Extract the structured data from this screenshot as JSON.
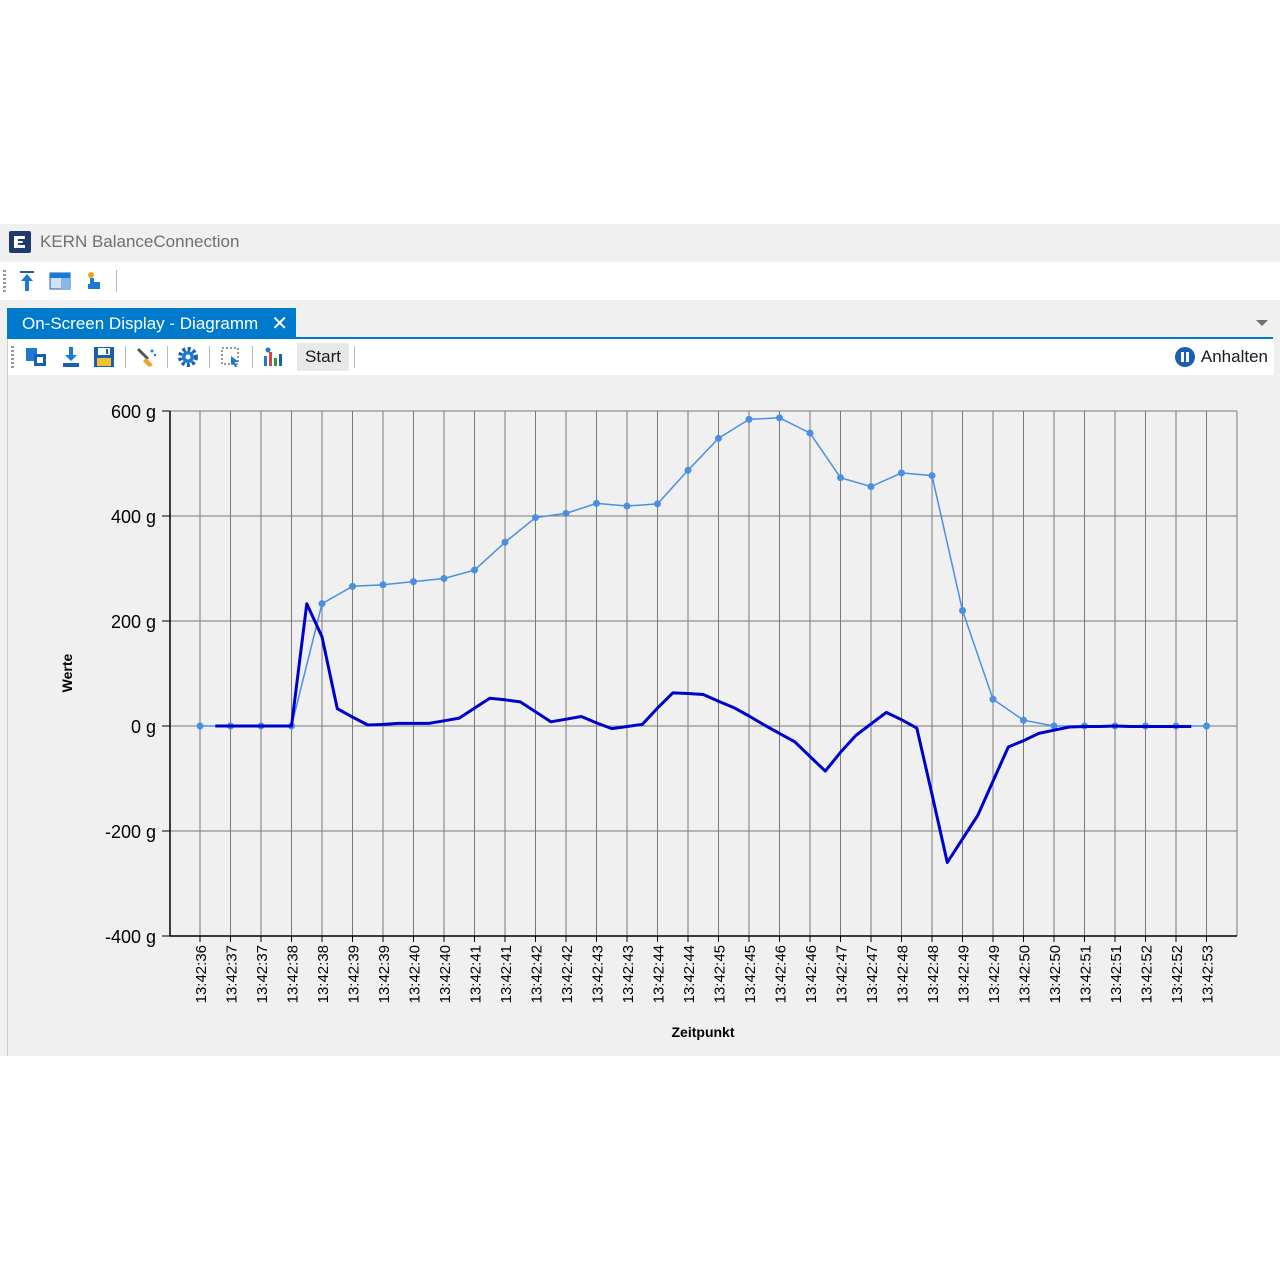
{
  "app": {
    "title": "KERN BalanceConnection",
    "logo": "kern-logo-icon"
  },
  "main_toolbar": {
    "buttons": [
      {
        "name": "upload-arrow-icon"
      },
      {
        "name": "window-layout-icon"
      },
      {
        "name": "touch-pointer-icon"
      }
    ]
  },
  "tab": {
    "label": "On-Screen Display - Diagramm",
    "close_label": "✕"
  },
  "doc_toolbar": {
    "buttons": [
      {
        "name": "connect-devices-icon"
      },
      {
        "name": "download-icon"
      },
      {
        "name": "save-icon"
      },
      {
        "name": "clear-brush-icon"
      },
      {
        "name": "settings-gear-icon"
      },
      {
        "name": "select-area-icon"
      },
      {
        "name": "chart-config-icon"
      }
    ],
    "start_label": "Start",
    "pause_label": "Anhalten"
  },
  "colors": {
    "accent": "#007acc",
    "series_light": "#4a90e2",
    "series_dark": "#0000cc"
  },
  "chart_data": {
    "type": "line",
    "xlabel": "Zeitpunkt",
    "ylabel": "Werte",
    "ylim": [
      -400,
      600
    ],
    "y_ticks": [
      "600 g",
      "400 g",
      "200 g",
      "0 g",
      "-200 g",
      "-400 g"
    ],
    "categories": [
      "13:42:36",
      "13:42:37",
      "13:42:37",
      "13:42:38",
      "13:42:38",
      "13:42:39",
      "13:42:39",
      "13:42:40",
      "13:42:40",
      "13:42:41",
      "13:42:41",
      "13:42:42",
      "13:42:42",
      "13:42:43",
      "13:42:43",
      "13:42:44",
      "13:42:44",
      "13:42:45",
      "13:42:45",
      "13:42:46",
      "13:42:46",
      "13:42:47",
      "13:42:47",
      "13:42:48",
      "13:42:48",
      "13:42:49",
      "13:42:49",
      "13:42:50",
      "13:42:50",
      "13:42:51",
      "13:42:51",
      "13:42:52",
      "13:42:52",
      "13:42:53"
    ],
    "grid": true,
    "series": [
      {
        "style": "light-with-markers",
        "x": [
          0,
          1,
          2,
          3,
          4,
          5,
          6,
          7,
          8,
          9,
          10,
          11,
          12,
          13,
          14,
          15,
          16,
          17,
          18,
          19,
          20,
          21,
          22,
          23,
          24,
          25,
          26,
          27,
          28,
          29,
          30,
          31,
          32,
          33
        ],
        "values": [
          0,
          0,
          0,
          0,
          233,
          266,
          269,
          275,
          281,
          297,
          350,
          397,
          405,
          424,
          419,
          423,
          487,
          548,
          584,
          587,
          558,
          473,
          456,
          482,
          477,
          220,
          51,
          11,
          0,
          0,
          0,
          0,
          0,
          0
        ]
      },
      {
        "style": "dark-thick",
        "x": [
          0.5,
          1,
          1.5,
          2,
          2.5,
          3,
          3.5,
          4,
          4.5,
          5,
          5.5,
          6,
          6.5,
          7,
          7.5,
          8,
          8.5,
          9,
          9.5,
          10,
          10.5,
          11,
          11.5,
          12,
          12.5,
          13,
          13.5,
          14,
          14.5,
          15,
          15.5,
          16,
          16.5,
          17,
          17.5,
          18,
          18.5,
          19,
          19.5,
          20,
          20.5,
          21,
          21.5,
          22,
          22.5,
          23,
          23.5,
          24,
          24.5,
          25,
          25.5,
          26,
          26.5,
          27,
          27.5,
          28,
          28.5,
          29,
          29.5,
          30,
          30.5,
          31,
          31.5,
          32,
          32.5
        ],
        "values": [
          0,
          0,
          0,
          0,
          0,
          0,
          233,
          170,
          33,
          17,
          2,
          3,
          5,
          5,
          5,
          10,
          15,
          34,
          53,
          50,
          46,
          27,
          8,
          13,
          18,
          6,
          -5,
          -1,
          3,
          34,
          63,
          62,
          60,
          47,
          35,
          19,
          2,
          -14,
          -30,
          -58,
          -86,
          -50,
          -18,
          4,
          26,
          12,
          -4,
          -130,
          -260,
          -215,
          -170,
          -105,
          -40,
          -28,
          -14,
          -8,
          -2,
          -1,
          -1,
          0,
          -1,
          -1,
          -1,
          -1,
          -1
        ]
      }
    ]
  }
}
